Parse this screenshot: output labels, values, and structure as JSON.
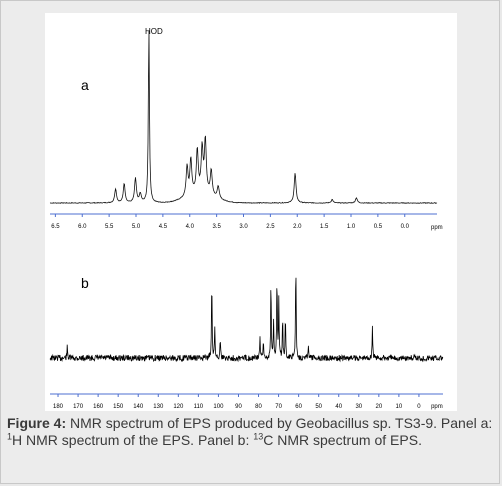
{
  "caption": {
    "figure_label": "Figure 4:",
    "p1": " NMR spectrum of EPS produced by Geobacillus sp. TS3-9. Panel a: ",
    "sup1": "1",
    "p2": "H NMR spectrum of the EPS. Panel b: ",
    "sup2": "13",
    "p3": "C NMR spectrum of EPS."
  },
  "chart_data": [
    {
      "type": "line",
      "panel_label": "a",
      "annotation": "HOD",
      "xlabel": "ppm",
      "xlim": [
        6.6,
        -0.6
      ],
      "tick_labels": [
        "6.5",
        "6.0",
        "5.5",
        "5.0",
        "4.5",
        "4.0",
        "3.5",
        "3.0",
        "2.5",
        "2.0",
        "1.5",
        "1.0",
        "0.5",
        "0.0"
      ],
      "ticks": [
        6.5,
        6.0,
        5.5,
        5.0,
        4.5,
        4.0,
        3.5,
        3.0,
        2.5,
        2.0,
        1.5,
        1.0,
        0.5,
        0.0
      ],
      "peaks": [
        {
          "x": 5.38,
          "h": 0.08
        },
        {
          "x": 5.22,
          "h": 0.11
        },
        {
          "x": 5.01,
          "h": 0.14
        },
        {
          "x": 4.92,
          "h": 0.05
        },
        {
          "x": 4.76,
          "h": 1.0,
          "label": "HOD"
        },
        {
          "x": 4.05,
          "h": 0.17
        },
        {
          "x": 3.98,
          "h": 0.2
        },
        {
          "x": 3.86,
          "h": 0.24
        },
        {
          "x": 3.77,
          "h": 0.25
        },
        {
          "x": 3.71,
          "h": 0.3
        },
        {
          "x": 3.6,
          "h": 0.14
        },
        {
          "x": 3.47,
          "h": 0.07
        },
        {
          "x": 2.04,
          "h": 0.17
        },
        {
          "x": 1.35,
          "h": 0.02
        },
        {
          "x": 0.9,
          "h": 0.03
        }
      ]
    },
    {
      "type": "line",
      "panel_label": "b",
      "xlabel": "ppm",
      "xlim": [
        184,
        -12
      ],
      "tick_labels": [
        "180",
        "170",
        "160",
        "150",
        "140",
        "130",
        "120",
        "110",
        "100",
        "90",
        "80",
        "70",
        "60",
        "50",
        "40",
        "30",
        "20",
        "10",
        "0",
        "ppm"
      ],
      "ticks": [
        180,
        170,
        160,
        150,
        140,
        130,
        120,
        110,
        100,
        90,
        80,
        70,
        60,
        50,
        40,
        30,
        20,
        10,
        0
      ],
      "peaks": [
        {
          "x": 175.4,
          "h": 0.1
        },
        {
          "x": 103.3,
          "h": 0.75
        },
        {
          "x": 101.8,
          "h": 0.28
        },
        {
          "x": 99.1,
          "h": 0.2
        },
        {
          "x": 79.3,
          "h": 0.2
        },
        {
          "x": 77.6,
          "h": 0.14
        },
        {
          "x": 73.8,
          "h": 0.74
        },
        {
          "x": 72.5,
          "h": 0.32
        },
        {
          "x": 70.8,
          "h": 0.78
        },
        {
          "x": 69.9,
          "h": 0.52
        },
        {
          "x": 68.0,
          "h": 0.38
        },
        {
          "x": 66.6,
          "h": 0.36
        },
        {
          "x": 61.4,
          "h": 0.92
        },
        {
          "x": 55.2,
          "h": 0.12
        },
        {
          "x": 23.2,
          "h": 0.3
        }
      ]
    }
  ]
}
